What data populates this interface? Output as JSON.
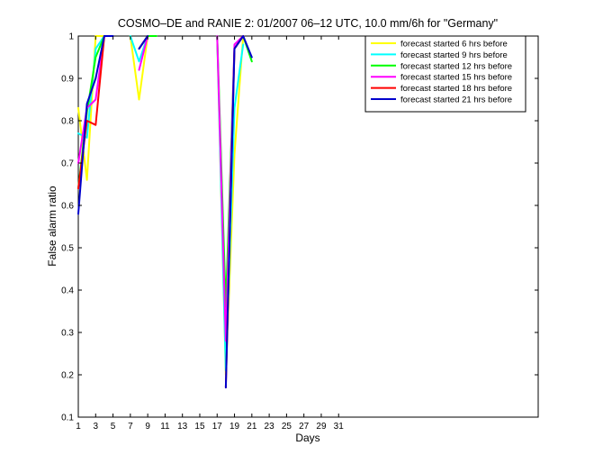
{
  "chart_data": {
    "type": "line",
    "title": "COSMO–DE and RANIE 2: 01/2007 06–12 UTC, 10.0 mm/6h for \"Germany\"",
    "xlabel": "Days",
    "ylabel": "False alarm ratio",
    "xlim": [
      1,
      54
    ],
    "ylim": [
      0.1,
      1
    ],
    "xticks": [
      1,
      3,
      5,
      7,
      9,
      11,
      13,
      15,
      17,
      19,
      21,
      23,
      25,
      27,
      29,
      31
    ],
    "yticks": [
      0.1,
      0.2,
      0.3,
      0.4,
      0.5,
      0.6,
      0.7,
      0.8,
      0.9,
      1
    ],
    "ytick_labels": [
      "0.1",
      "0.2",
      "0.3",
      "0.4",
      "0.5",
      "0.6",
      "0.7",
      "0.8",
      "0.9",
      "1"
    ],
    "grid": false,
    "legend_position": "top-right",
    "series": [
      {
        "name": "forecast started 6 hrs before",
        "color": "#ffff00",
        "segments": [
          [
            [
              1,
              0.83
            ],
            [
              2,
              0.66
            ],
            [
              3,
              1.0
            ],
            [
              4,
              1.0
            ]
          ],
          [
            [
              7,
              1.0
            ],
            [
              8,
              0.85
            ],
            [
              9,
              1.0
            ]
          ],
          [
            [
              17,
              1.0
            ],
            [
              18,
              0.2
            ],
            [
              19,
              0.72
            ],
            [
              20,
              1.0
            ]
          ]
        ]
      },
      {
        "name": "forecast started 9 hrs before",
        "color": "#00ffff",
        "segments": [
          [
            [
              1,
              0.77
            ],
            [
              2,
              0.76
            ],
            [
              3,
              0.97
            ],
            [
              4,
              1.0
            ]
          ],
          [
            [
              7,
              1.0
            ],
            [
              8,
              0.94
            ],
            [
              9,
              1.0
            ]
          ],
          [
            [
              17,
              1.0
            ],
            [
              18,
              0.21
            ],
            [
              19,
              0.83
            ],
            [
              20,
              0.98
            ]
          ]
        ]
      },
      {
        "name": "forecast started 12 hrs before",
        "color": "#00ff00",
        "segments": [
          [
            [
              1,
              0.64
            ],
            [
              2,
              0.82
            ],
            [
              3,
              0.95
            ],
            [
              4,
              1.0
            ]
          ],
          [
            [
              8,
              0.97
            ],
            [
              9,
              1.0
            ],
            [
              10,
              1.0
            ]
          ],
          [
            [
              17,
              1.0
            ],
            [
              18,
              0.36
            ],
            [
              19,
              0.97
            ],
            [
              20,
              1.0
            ],
            [
              21,
              0.94
            ]
          ]
        ]
      },
      {
        "name": "forecast started 15 hrs before",
        "color": "#ff00ff",
        "segments": [
          [
            [
              1,
              0.7
            ],
            [
              2,
              0.83
            ],
            [
              3,
              0.85
            ],
            [
              4,
              1.0
            ]
          ],
          [
            [
              8,
              0.92
            ],
            [
              9,
              1.0
            ]
          ],
          [
            [
              17,
              1.0
            ],
            [
              18,
              0.28
            ],
            [
              19,
              0.98
            ],
            [
              20,
              1.0
            ]
          ]
        ]
      },
      {
        "name": "forecast started 18 hrs before",
        "color": "#ff0000",
        "segments": [
          [
            [
              1,
              0.64
            ],
            [
              2,
              0.8
            ],
            [
              3,
              0.79
            ],
            [
              4,
              1.0
            ]
          ],
          [
            [
              8,
              0.97
            ],
            [
              9,
              1.0
            ]
          ],
          [
            [
              18,
              0.17
            ],
            [
              19,
              0.97
            ],
            [
              20,
              1.0
            ]
          ]
        ]
      },
      {
        "name": "forecast started 21 hrs before",
        "color": "#0000cc",
        "segments": [
          [
            [
              1,
              0.58
            ],
            [
              2,
              0.84
            ],
            [
              3,
              0.9
            ],
            [
              4,
              1.0
            ],
            [
              5,
              1.0
            ]
          ],
          [
            [
              8,
              0.97
            ],
            [
              9,
              1.0
            ]
          ],
          [
            [
              18,
              0.17
            ],
            [
              19,
              0.97
            ],
            [
              20,
              1.0
            ],
            [
              21,
              0.95
            ]
          ]
        ]
      }
    ]
  }
}
